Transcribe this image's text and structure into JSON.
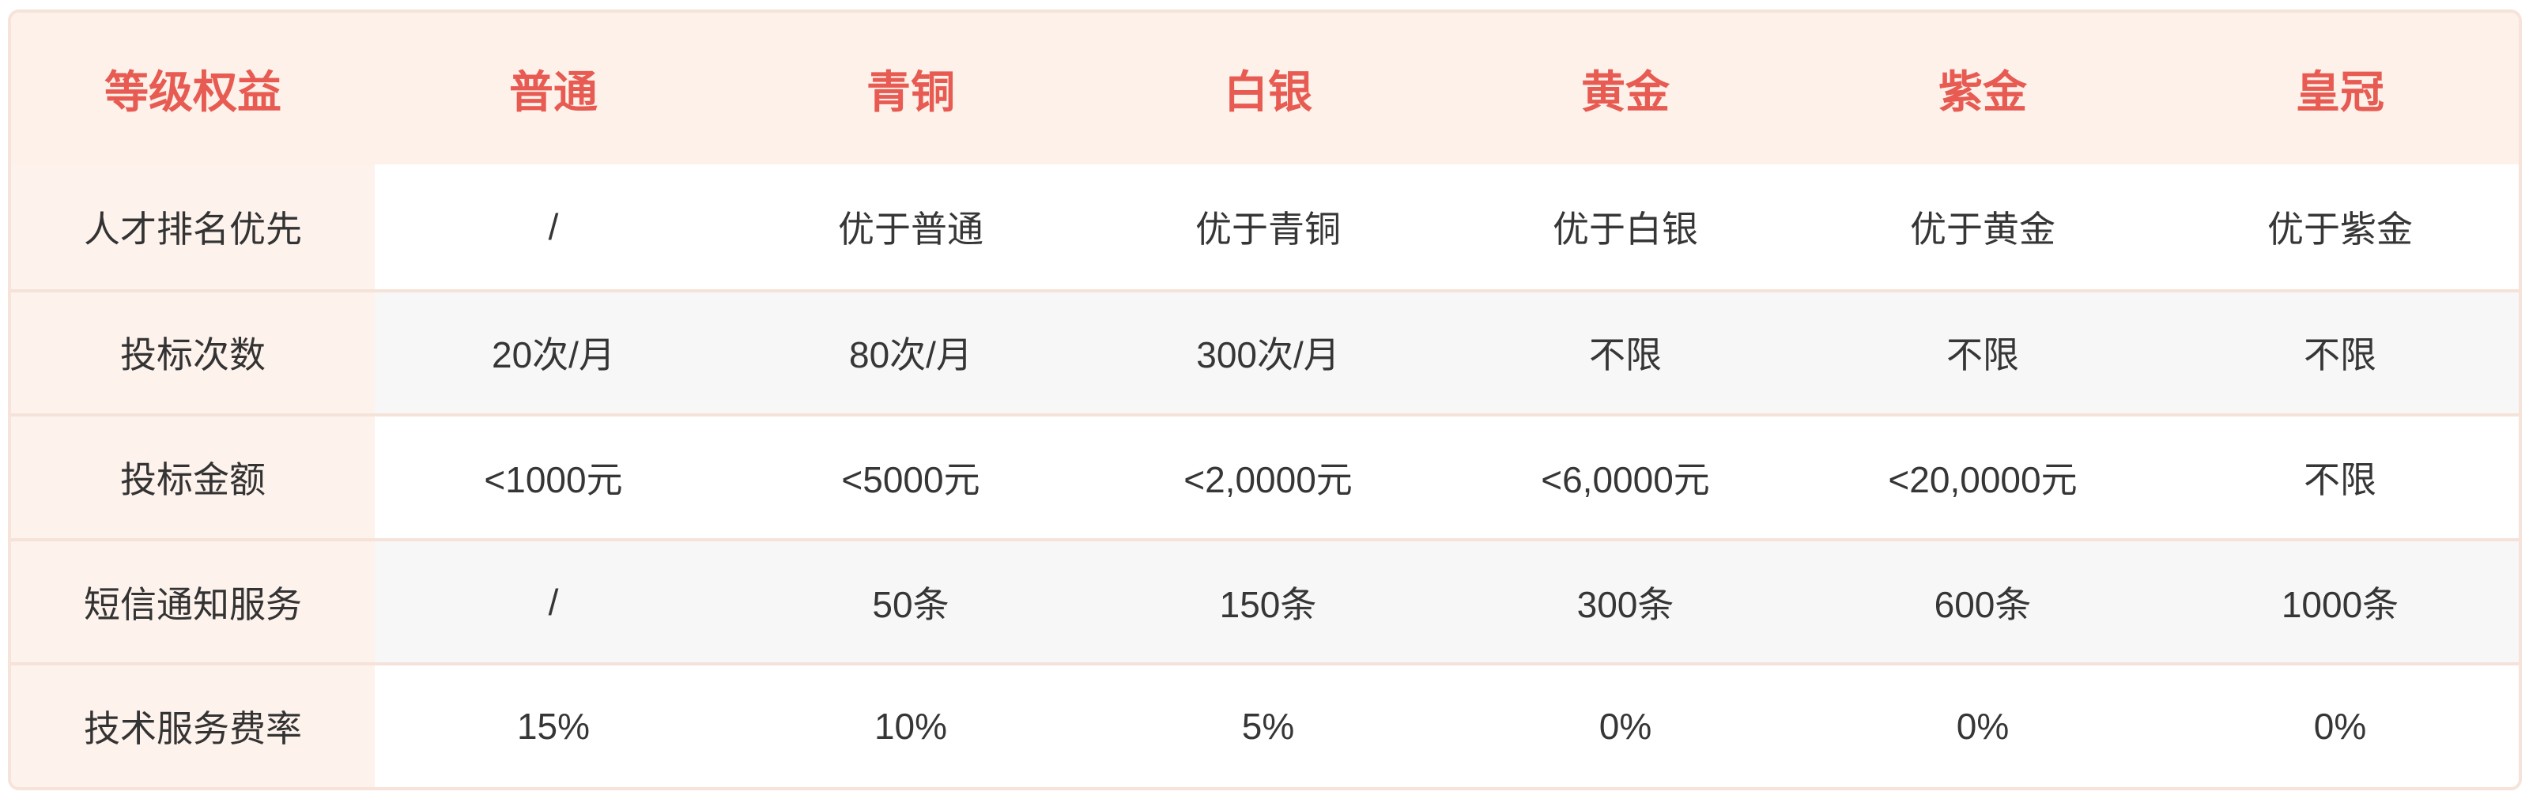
{
  "colors": {
    "header_bg": "#fdf1ea",
    "label_col_bg": "#fdf2ec",
    "accent_red": "#e75b52",
    "alt_row_bg": "#f7f7f8",
    "divider": "#f5e2d8",
    "border": "#f6e3d9",
    "body_text": "#363636"
  },
  "table": {
    "headers": [
      "等级权益",
      "普通",
      "青铜",
      "白银",
      "黄金",
      "紫金",
      "皇冠"
    ],
    "rows": [
      {
        "label": "人才排名优先",
        "values": [
          "/",
          "优于普通",
          "优于青铜",
          "优于白银",
          "优于黄金",
          "优于紫金"
        ]
      },
      {
        "label": "投标次数",
        "values": [
          "20次/月",
          "80次/月",
          "300次/月",
          "不限",
          "不限",
          "不限"
        ]
      },
      {
        "label": "投标金额",
        "values": [
          "<1000元",
          "<5000元",
          "<2,0000元",
          "<6,0000元",
          "<20,0000元",
          "不限"
        ]
      },
      {
        "label": "短信通知服务",
        "values": [
          "/",
          "50条",
          "150条",
          "300条",
          "600条",
          "1000条"
        ]
      },
      {
        "label": "技术服务费率",
        "values": [
          "15%",
          "10%",
          "5%",
          "0%",
          "0%",
          "0%"
        ]
      }
    ]
  }
}
